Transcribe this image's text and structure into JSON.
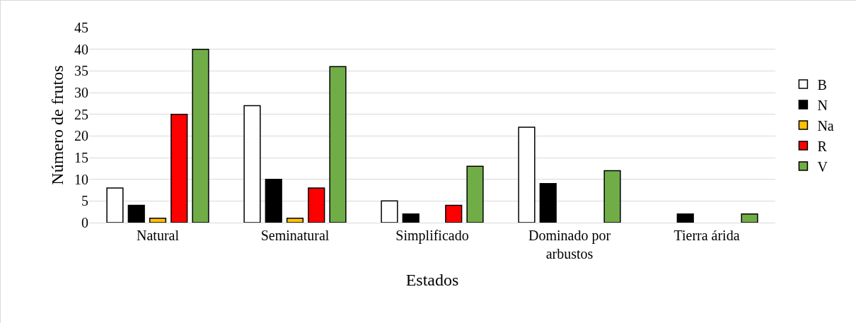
{
  "chart_data": {
    "type": "bar",
    "xlabel": "Estados",
    "ylabel": "Número de frutos",
    "categories": [
      "Natural",
      "Seminatural",
      "Simplificado",
      "Dominado por arbustos",
      "Tierra árida"
    ],
    "series": [
      {
        "name": "B",
        "color": "#ffffff",
        "values": [
          8,
          27,
          5,
          22,
          0
        ]
      },
      {
        "name": "N",
        "color": "#000000",
        "values": [
          4,
          10,
          2,
          9,
          2
        ]
      },
      {
        "name": "Na",
        "color": "#ffc000",
        "values": [
          1,
          1,
          0,
          0,
          0
        ]
      },
      {
        "name": "R",
        "color": "#ff0000",
        "values": [
          25,
          8,
          4,
          0,
          0
        ]
      },
      {
        "name": "V",
        "color": "#70ad47",
        "values": [
          40,
          36,
          13,
          12,
          2
        ]
      }
    ],
    "ylim": [
      0,
      45
    ],
    "yticks": [
      0,
      5,
      10,
      15,
      20,
      25,
      30,
      35,
      40,
      45
    ],
    "grid": "y",
    "legend": "right"
  }
}
